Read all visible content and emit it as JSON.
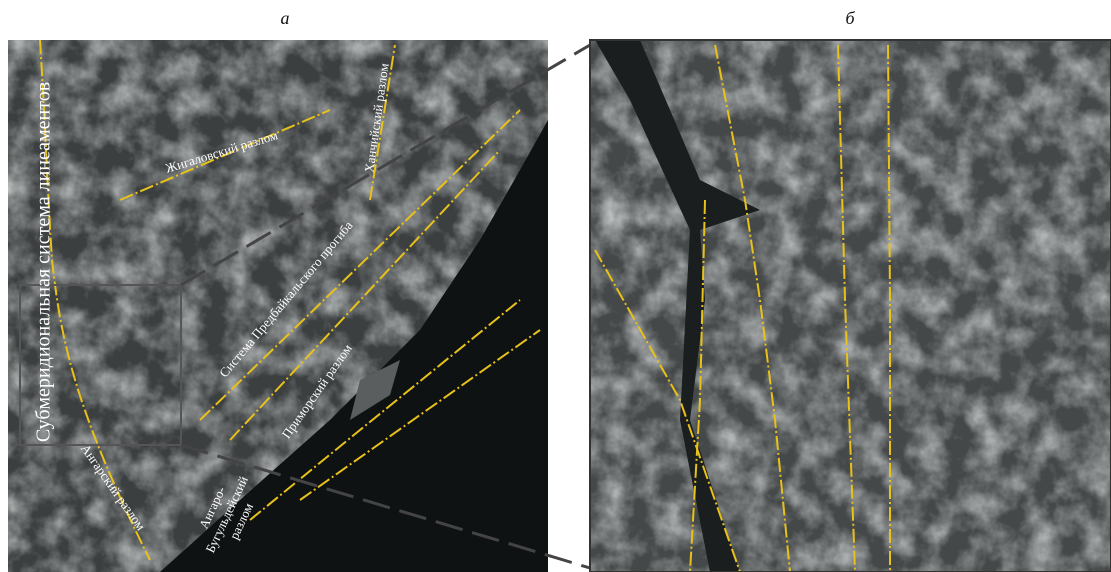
{
  "panels": {
    "left_label": "а",
    "right_label": "б"
  },
  "annotations": {
    "submeridional": "Субмеридиональная система линеаментов",
    "zhigalovsky": "Жигаловский разлом",
    "khanchiysky": "Ханчийский разлом",
    "predbaikal": "Система Предбайкальского прогиба",
    "primorsky": "Приморский разлом",
    "angarsky": "Ангарский разлом",
    "angaro_buguldeysky": [
      "Ангаро-",
      "Бугульдейский",
      "разлом"
    ]
  }
}
